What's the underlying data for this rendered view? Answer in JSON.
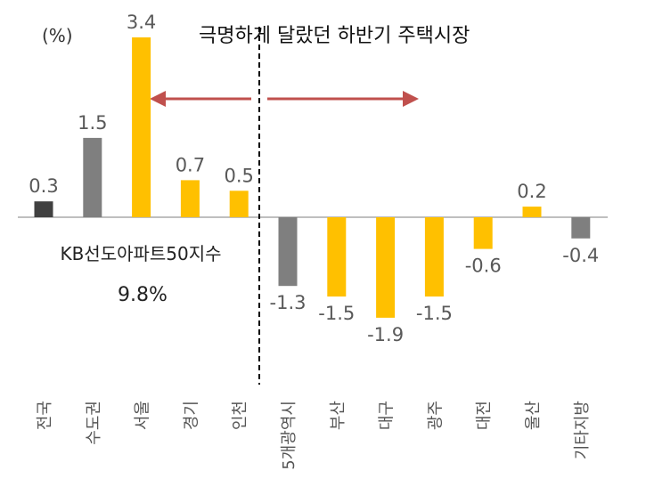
{
  "chart_data": {
    "type": "bar",
    "title": "극명하게 달랐던 하반기 주택시장",
    "ylabel": "(%)",
    "categories": [
      "전국",
      "수도권",
      "서울",
      "경기",
      "인천",
      "5개광역시",
      "부산",
      "대구",
      "광주",
      "대전",
      "울산",
      "기타지방"
    ],
    "values": [
      0.3,
      1.5,
      3.4,
      0.7,
      0.5,
      -1.3,
      -1.5,
      -1.9,
      -1.5,
      -0.6,
      0.2,
      -0.4
    ],
    "value_labels": [
      "0.3",
      "1.5",
      "3.4",
      "0.7",
      "0.5",
      "-1.3",
      "-1.5",
      "-1.9",
      "-1.5",
      "-0.6",
      "0.2",
      "-0.4"
    ],
    "bar_colors": [
      "#404040",
      "#7f7f7f",
      "#ffc000",
      "#ffc000",
      "#ffc000",
      "#7f7f7f",
      "#ffc000",
      "#ffc000",
      "#ffc000",
      "#ffc000",
      "#ffc000",
      "#7f7f7f"
    ],
    "annotation": {
      "label": "KB선도아파트50지수",
      "value": "9.8%"
    },
    "divider": "dashed vertical line between 인천 and 5개광역시",
    "arrow_color": "#c0504d",
    "axis_color": "#bfbfbf",
    "grid": false,
    "legend": "none"
  }
}
